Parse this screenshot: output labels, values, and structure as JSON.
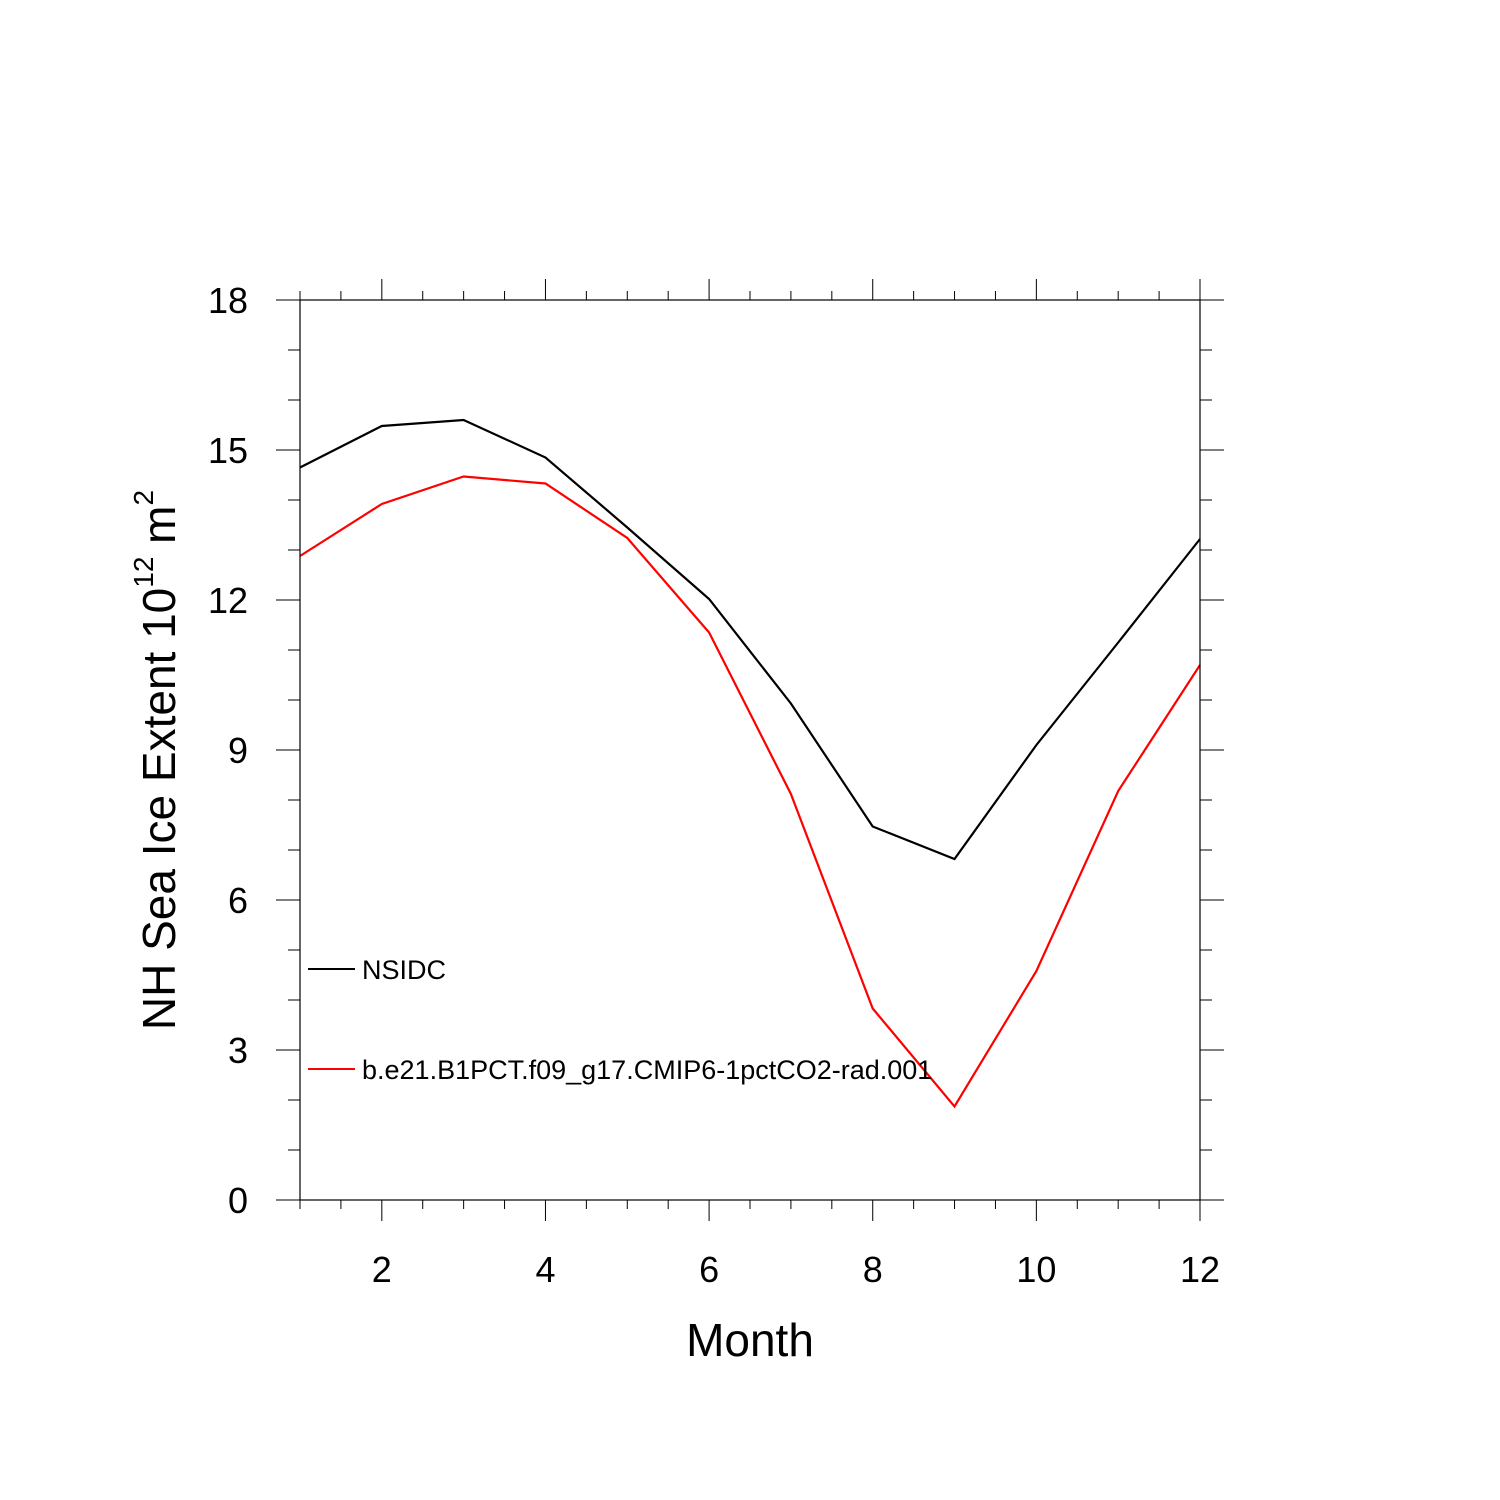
{
  "chart_data": {
    "type": "line",
    "xlabel": "Month",
    "ylabel": {
      "text": "NH Sea Ice Extent 10",
      "exp": "12",
      "unit": " m",
      "unit_exp": "2"
    },
    "xlim": [
      1,
      12
    ],
    "ylim": [
      0,
      18
    ],
    "x_ticks": [
      2,
      4,
      6,
      8,
      10,
      12
    ],
    "x_minor_step": 0.5,
    "y_ticks": [
      0,
      3,
      6,
      9,
      12,
      15,
      18
    ],
    "y_minor_step": 1,
    "grid": false,
    "legend_position": "lower-left",
    "x": [
      1,
      2,
      3,
      4,
      5,
      6,
      7,
      8,
      9,
      10,
      11,
      12
    ],
    "series": [
      {
        "name": "NSIDC",
        "color": "#000000",
        "values": [
          14.65,
          15.48,
          15.6,
          14.85,
          13.45,
          12.02,
          9.93,
          7.47,
          6.82,
          9.1,
          11.15,
          13.22
        ]
      },
      {
        "name": "b.e21.B1PCT.f09_g17.CMIP6-1pctCO2-rad.001",
        "color": "#ff0000",
        "values": [
          12.88,
          13.92,
          14.47,
          14.33,
          13.24,
          11.35,
          8.12,
          3.83,
          1.87,
          4.58,
          8.18,
          10.7
        ]
      }
    ]
  }
}
